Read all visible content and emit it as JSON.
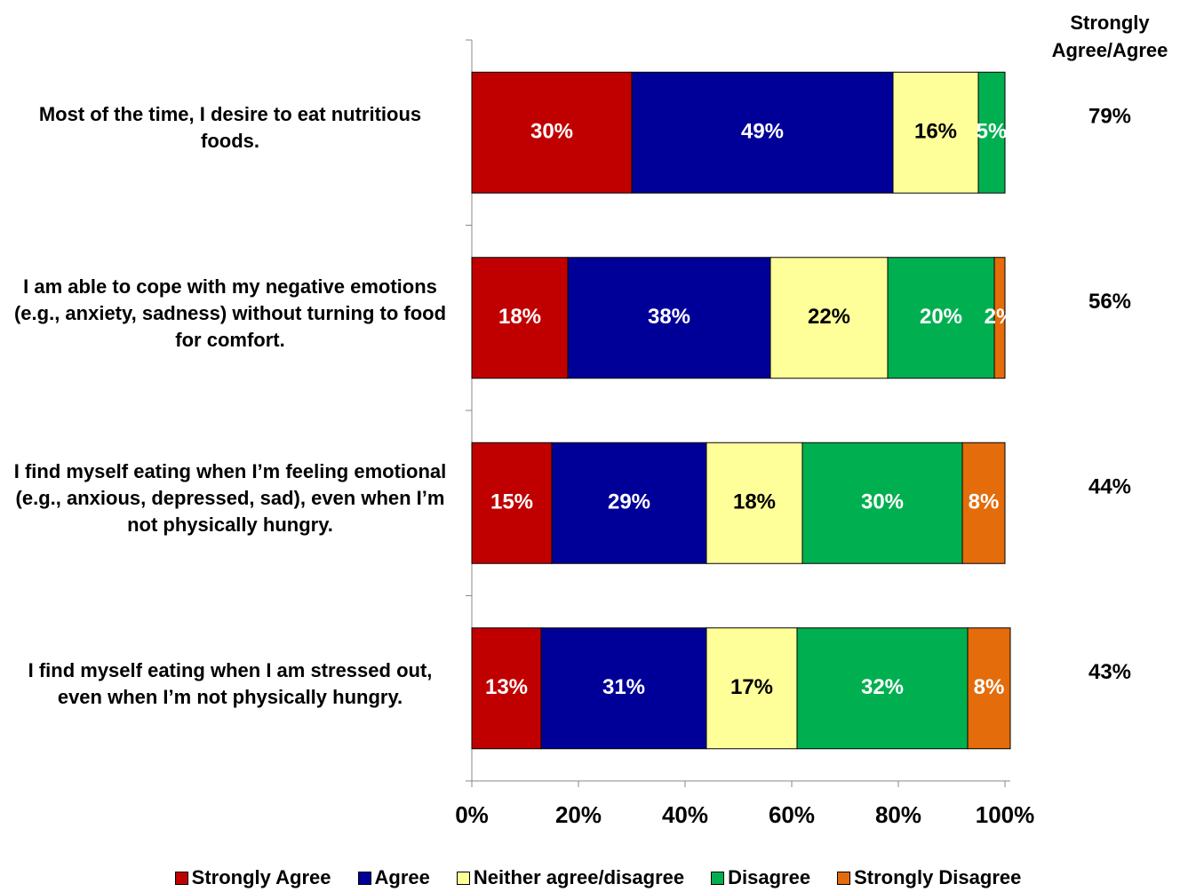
{
  "chart_data": {
    "type": "stacked_barh",
    "categories": [
      "Most of the time, I desire to eat nutritious foods.",
      "I am able to cope with my negative emotions (e.g., anxiety, sadness) without turning to food for comfort.",
      "I find myself eating when I’m feeling emotional (e.g., anxious, depressed, sad), even when I’m not physically hungry.",
      "I find myself eating when I am stressed out, even when I’m not physically hungry."
    ],
    "series": [
      {
        "name": "Strongly Agree",
        "color": "#c00000",
        "values": [
          30,
          18,
          15,
          13
        ],
        "value_labels": [
          "30%",
          "18%",
          "15%",
          "13%"
        ]
      },
      {
        "name": "Agree",
        "color": "#000099",
        "values": [
          49,
          38,
          29,
          31
        ],
        "value_labels": [
          "49%",
          "38%",
          "29%",
          "31%"
        ]
      },
      {
        "name": "Neither agree/disagree",
        "color": "#ffff99",
        "values": [
          16,
          22,
          18,
          17
        ],
        "value_labels": [
          "16%",
          "22%",
          "18%",
          "17%"
        ]
      },
      {
        "name": "Disagree",
        "color": "#00b050",
        "values": [
          5,
          20,
          30,
          32
        ],
        "value_labels": [
          "5%",
          "20%",
          "30%",
          "32%"
        ]
      },
      {
        "name": "Strongly Disagree",
        "color": "#e46c0a",
        "values": [
          null,
          2,
          8,
          8
        ],
        "value_labels": [
          null,
          "2%",
          "8%",
          "8%"
        ]
      }
    ],
    "xlim": [
      0,
      100
    ],
    "xticks": [
      {
        "value": 0,
        "label": "0%"
      },
      {
        "value": 20,
        "label": "20%"
      },
      {
        "value": 40,
        "label": "40%"
      },
      {
        "value": 60,
        "label": "60%"
      },
      {
        "value": 80,
        "label": "80%"
      },
      {
        "value": 100,
        "label": "100%"
      }
    ],
    "summary": {
      "title": "Strongly Agree/Agree",
      "values": [
        79,
        56,
        44,
        43
      ],
      "value_labels": [
        "79%",
        "56%",
        "44%",
        "43%"
      ]
    },
    "legend": "bottom"
  }
}
